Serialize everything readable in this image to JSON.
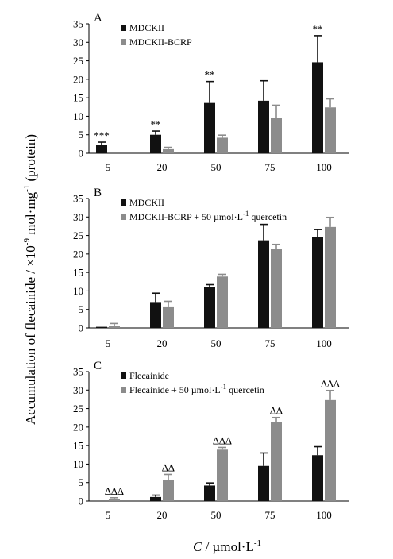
{
  "figure": {
    "ylabel": "Accumulation of flecainide / ×10",
    "ylabel_sup1": "-9",
    "ylabel_mid": " mol·mg",
    "ylabel_sup2": "-1",
    "ylabel_end": " (protein)",
    "xlabel_var": "C",
    "xlabel_unit": " / µmol·L",
    "xlabel_sup": "-1"
  },
  "colors": {
    "black": "#111111",
    "gray": "#8c8c8c"
  },
  "chart_data": [
    {
      "type": "bar",
      "panel": "A",
      "categories": [
        "5",
        "20",
        "50",
        "75",
        "100"
      ],
      "ylim": [
        0,
        35
      ],
      "yticks": [
        0,
        5,
        10,
        15,
        20,
        25,
        30,
        35
      ],
      "legend_placement": "top-left",
      "series": [
        {
          "name": "MDCKII",
          "color": "#111111",
          "values": [
            2.2,
            5.0,
            13.6,
            14.2,
            24.6
          ],
          "errors": [
            0.8,
            1.0,
            5.8,
            5.4,
            7.2
          ]
        },
        {
          "name": "MDCKII-BCRP",
          "color": "#8c8c8c",
          "values": [
            0.0,
            1.1,
            4.2,
            9.5,
            12.4
          ],
          "errors": [
            0.0,
            0.5,
            0.7,
            3.5,
            2.3
          ]
        }
      ],
      "annotations": [
        "***",
        "**",
        "**",
        "",
        "**"
      ],
      "annotation_series": 0
    },
    {
      "type": "bar",
      "panel": "B",
      "categories": [
        "5",
        "20",
        "50",
        "75",
        "100"
      ],
      "ylim": [
        0,
        35
      ],
      "yticks": [
        0,
        5,
        10,
        15,
        20,
        25,
        30,
        35
      ],
      "legend_placement": "top-left",
      "series": [
        {
          "name": "MDCKII",
          "color": "#111111",
          "values": [
            0.3,
            7.0,
            11.0,
            23.7,
            24.5
          ],
          "errors": [
            0.0,
            2.4,
            0.7,
            4.3,
            2.1
          ]
        },
        {
          "name": "MDCKII-BCRP + 50 µmol·L",
          "name_sup": "-1",
          "name_end": " quercetin",
          "color": "#8c8c8c",
          "values": [
            0.6,
            5.6,
            13.9,
            21.4,
            27.3
          ],
          "errors": [
            0.6,
            1.6,
            0.6,
            1.2,
            2.6
          ]
        }
      ],
      "annotations": [
        "",
        "",
        "",
        "",
        ""
      ],
      "annotation_series": 1
    },
    {
      "type": "bar",
      "panel": "C",
      "categories": [
        "5",
        "20",
        "50",
        "75",
        "100"
      ],
      "ylim": [
        0,
        35
      ],
      "yticks": [
        0,
        5,
        10,
        15,
        20,
        25,
        30,
        35
      ],
      "legend_placement": "top-left",
      "series": [
        {
          "name": "Flecainide",
          "color": "#111111",
          "values": [
            0.0,
            1.1,
            4.2,
            9.5,
            12.4
          ],
          "errors": [
            0.0,
            0.5,
            0.7,
            3.5,
            2.3
          ]
        },
        {
          "name": "Flecainide + 50 µmol·L",
          "name_sup": "-1",
          "name_end": " quercetin",
          "color": "#8c8c8c",
          "values": [
            0.6,
            5.8,
            13.9,
            21.4,
            27.3
          ],
          "errors": [
            0.3,
            1.4,
            0.6,
            1.2,
            2.6
          ]
        }
      ],
      "annotations": [
        "∆∆∆",
        "∆∆",
        "∆∆∆",
        "∆∆",
        "∆∆∆"
      ],
      "annotation_series": 1
    }
  ]
}
